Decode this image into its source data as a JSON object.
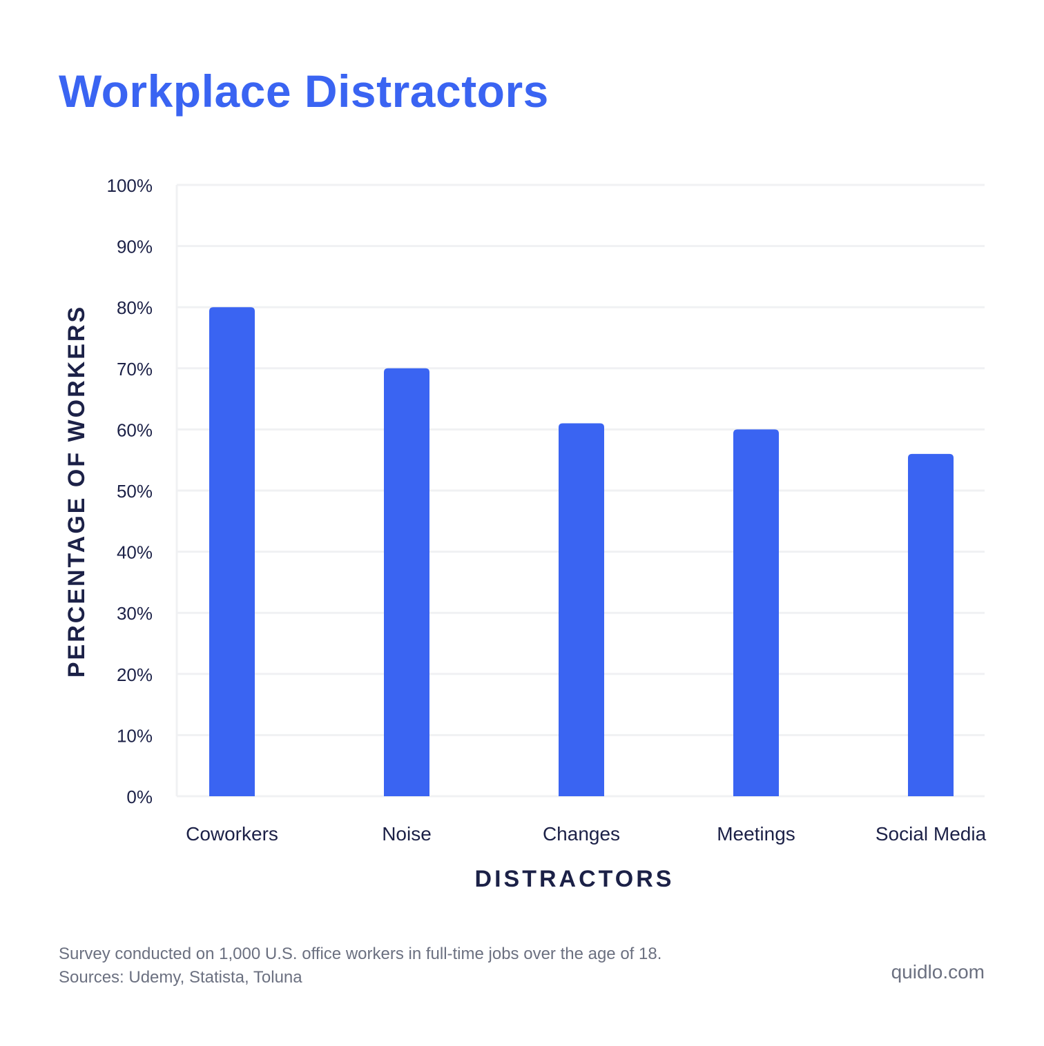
{
  "chart_data": {
    "type": "bar",
    "title": "Workplace Distractors",
    "categories": [
      "Coworkers",
      "Noise",
      "Changes",
      "Meetings",
      "Social Media"
    ],
    "values": [
      80,
      70,
      61,
      60,
      56
    ],
    "xlabel": "DISTRACTORS",
    "ylabel": "PERCENTAGE OF WORKERS",
    "ylim": [
      0,
      100
    ],
    "yticks": [
      0,
      10,
      20,
      30,
      40,
      50,
      60,
      70,
      80,
      90,
      100
    ],
    "ytick_labels": [
      "0%",
      "10%",
      "20%",
      "30%",
      "40%",
      "50%",
      "60%",
      "70%",
      "80%",
      "90%",
      "100%"
    ],
    "grid": true,
    "legend": "none"
  },
  "colors": {
    "bar": "#3a64f2",
    "title": "#3a64f2",
    "axis_text": "#1c2147",
    "grid": "#f0f1f3",
    "footnote": "#6b7080"
  },
  "footnote": {
    "line1": "Survey conducted on 1,000 U.S. office workers in full-time jobs over the age of 18.",
    "line2": "Sources: Udemy, Statista, Toluna"
  },
  "brand": "quidlo.com"
}
